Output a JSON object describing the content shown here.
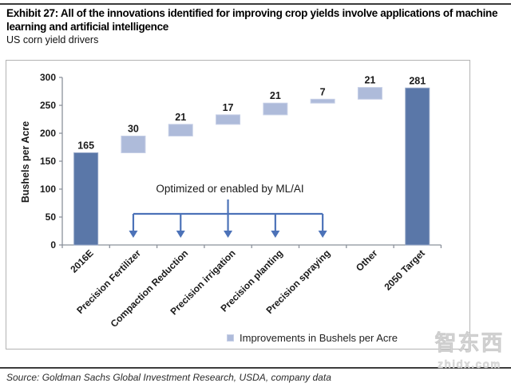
{
  "header": {
    "exhibit_title": "Exhibit 27: All of the innovations identified for improving crop yields involve applications of machine learning and artificial intelligence",
    "subtitle": "US corn yield drivers"
  },
  "chart_data": {
    "type": "bar",
    "subtype": "waterfall",
    "title": "US corn yield drivers",
    "xlabel": "",
    "ylabel": "Bushels per Acre",
    "ylim": [
      0,
      300
    ],
    "yticks": [
      0,
      50,
      100,
      150,
      200,
      250,
      300
    ],
    "grid": false,
    "legend_position": "bottom",
    "categories": [
      "2016E",
      "Precision Fertilizer",
      "Compaction Reduction",
      "Precision irrigation",
      "Precision planting",
      "Precision spraying",
      "Other",
      "2050 Target"
    ],
    "values": [
      165,
      30,
      21,
      17,
      21,
      7,
      21,
      281
    ],
    "bar_types": [
      "total",
      "increment",
      "increment",
      "increment",
      "increment",
      "increment",
      "increment",
      "total"
    ],
    "annotation": {
      "label": "Optimized or enabled by ML/AI",
      "applies_to": [
        "Precision Fertilizer",
        "Compaction Reduction",
        "Precision irrigation",
        "Precision planting",
        "Precision spraying"
      ]
    },
    "legend": [
      {
        "label": "Improvements in Bushels per Acre",
        "color": "#aebbda"
      }
    ],
    "colors": {
      "total_bar": "#5a77a8",
      "total_bar_edge": "#93a5c6",
      "increment_bar": "#aebbda",
      "increment_bar_edge": "#c6cfe6",
      "annotation_blue": "#4c72b8",
      "axis_gray": "#8b919b"
    }
  },
  "footer": {
    "source": "Source: Goldman Sachs Global Investment Research, USDA, company data"
  },
  "watermark": {
    "cn": "智东西",
    "site": "zhidx.com"
  }
}
